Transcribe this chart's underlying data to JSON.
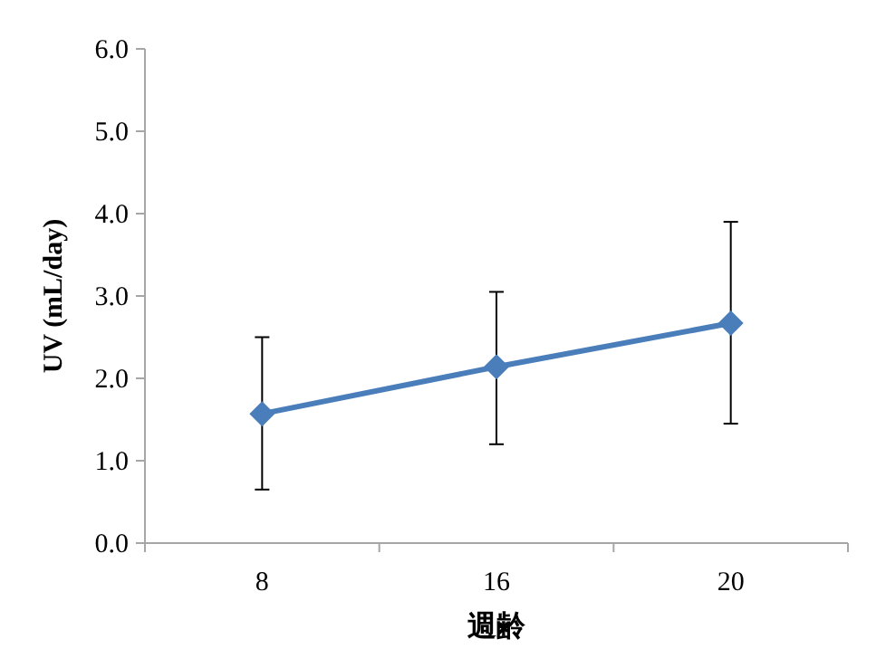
{
  "chart_data": {
    "type": "line",
    "xlabel": "週齢",
    "ylabel": "UV (mL/day)",
    "categories": [
      "8",
      "16",
      "20"
    ],
    "series": [
      {
        "color": "#4a7ebb",
        "values": [
          1.57,
          2.14,
          2.67
        ],
        "errors": [
          [
            0.65,
            2.5
          ],
          [
            1.2,
            3.05
          ],
          [
            1.45,
            3.9
          ]
        ]
      }
    ],
    "ylim": [
      0,
      6
    ],
    "yticks": [
      {
        "value": 0,
        "label": "0.0"
      },
      {
        "value": 1,
        "label": "1.0"
      },
      {
        "value": 2,
        "label": "2.0"
      },
      {
        "value": 3,
        "label": "3.0"
      },
      {
        "value": 4,
        "label": "4.0"
      },
      {
        "value": 5,
        "label": "5.0"
      },
      {
        "value": 6,
        "label": "6.0"
      }
    ],
    "marker": "diamond",
    "line_style": "solid"
  }
}
